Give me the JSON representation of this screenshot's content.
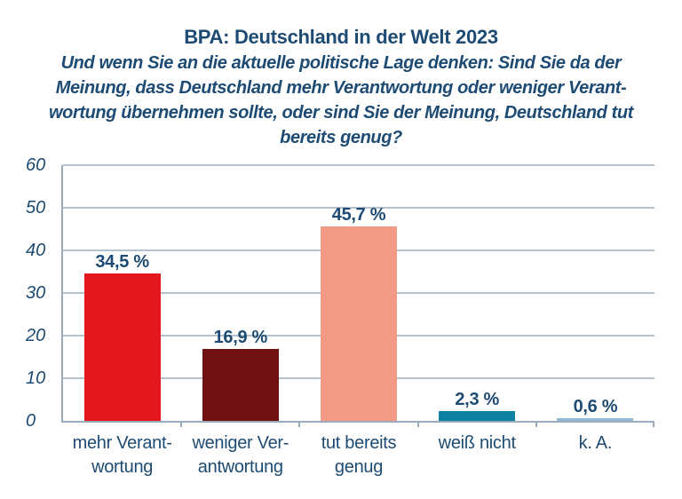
{
  "chart_data": {
    "type": "bar",
    "title": "BPA: Deutschland in der Welt 2023",
    "subtitle_lines": [
      "Und wenn Sie an die aktuelle politische Lage denken: Sind Sie da der",
      "Meinung, dass Deutschland mehr Verantwortung oder weniger Verant-",
      "wortung übernehmen sollte, oder sind Sie der Meinung, Deutschland tut",
      "bereits genug?"
    ],
    "categories": [
      "mehr Verantwortung",
      "weniger Verantwortung",
      "tut bereits genug",
      "weiß nicht",
      "k. A."
    ],
    "category_label_lines": [
      [
        "mehr Verant-",
        "wortung"
      ],
      [
        "weniger Ver-",
        "antwortung"
      ],
      [
        "tut bereits",
        "genug"
      ],
      [
        "weiß nicht"
      ],
      [
        "k. A."
      ]
    ],
    "values": [
      34.5,
      16.9,
      45.7,
      2.3,
      0.6
    ],
    "value_labels": [
      "34,5 %",
      "16,9 %",
      "45,7 %",
      "2,3 %",
      "0,6 %"
    ],
    "bar_colors": [
      "#e3181e",
      "#6f1013",
      "#f29a85",
      "#0e81a2",
      "#8fbad8"
    ],
    "xlabel": "",
    "ylabel": "",
    "ylim": [
      0,
      60
    ],
    "yticks": [
      0,
      10,
      20,
      30,
      40,
      50,
      60
    ],
    "grid": true,
    "legend": false,
    "colors": {
      "text": "#1d4b73",
      "gridline": "#b5c3d0",
      "axis": "#9aacbb",
      "background": "#ffffff"
    }
  }
}
